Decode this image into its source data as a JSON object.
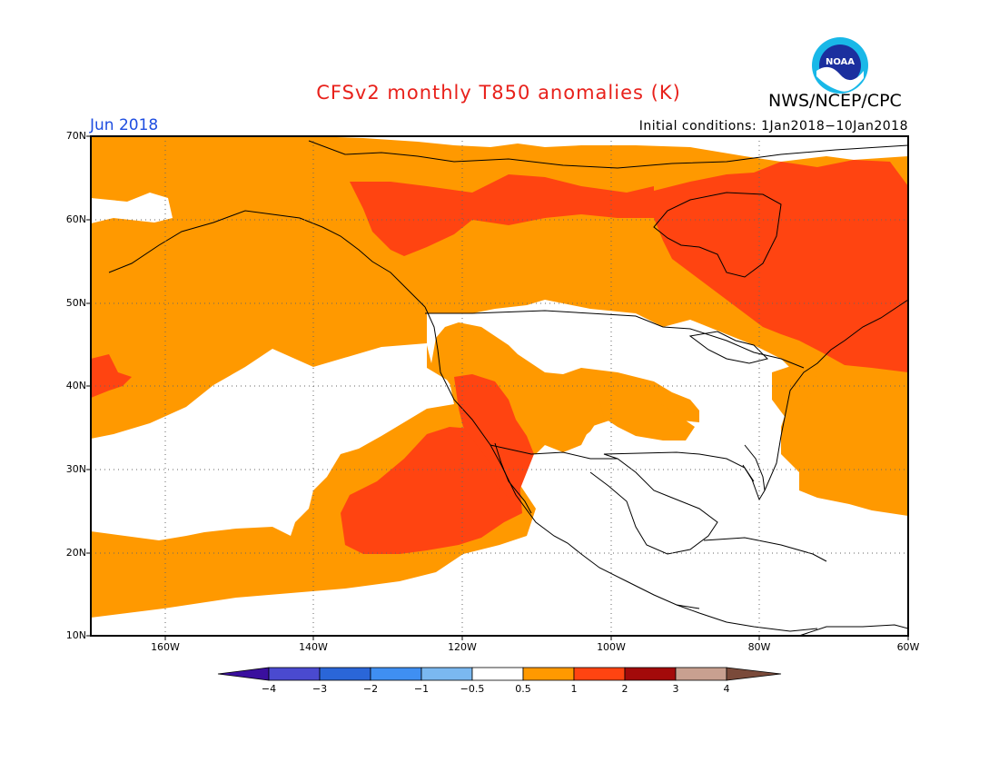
{
  "title": "CFSv2 monthly T850 anomalies (K)",
  "agency": "NWS/NCEP/CPC",
  "logo_text": "NOAA",
  "month_label": "Jun 2018",
  "init_label": "Initial conditions: 1Jan2018−10Jan2018",
  "lat_ticks": [
    "70N",
    "60N",
    "50N",
    "40N",
    "30N",
    "20N",
    "10N"
  ],
  "lon_ticks": [
    "160W",
    "140W",
    "120W",
    "100W",
    "80W",
    "60W"
  ],
  "colorbar": {
    "labels": [
      "−4",
      "−3",
      "−2",
      "−1",
      "−0.5",
      "0.5",
      "1",
      "2",
      "3",
      "4"
    ],
    "colors": [
      "#3a0f9e",
      "#4a4ad0",
      "#2a66d8",
      "#3f8ff2",
      "#7ab8f0",
      "#ffffff",
      "#ff9900",
      "#ff4411",
      "#a30a0a",
      "#c8a090",
      "#7a4a3a"
    ]
  },
  "map_colors": {
    "above_0_5": "#ff9900",
    "above_1": "#ff4411",
    "near_normal": "#ffffff"
  }
}
